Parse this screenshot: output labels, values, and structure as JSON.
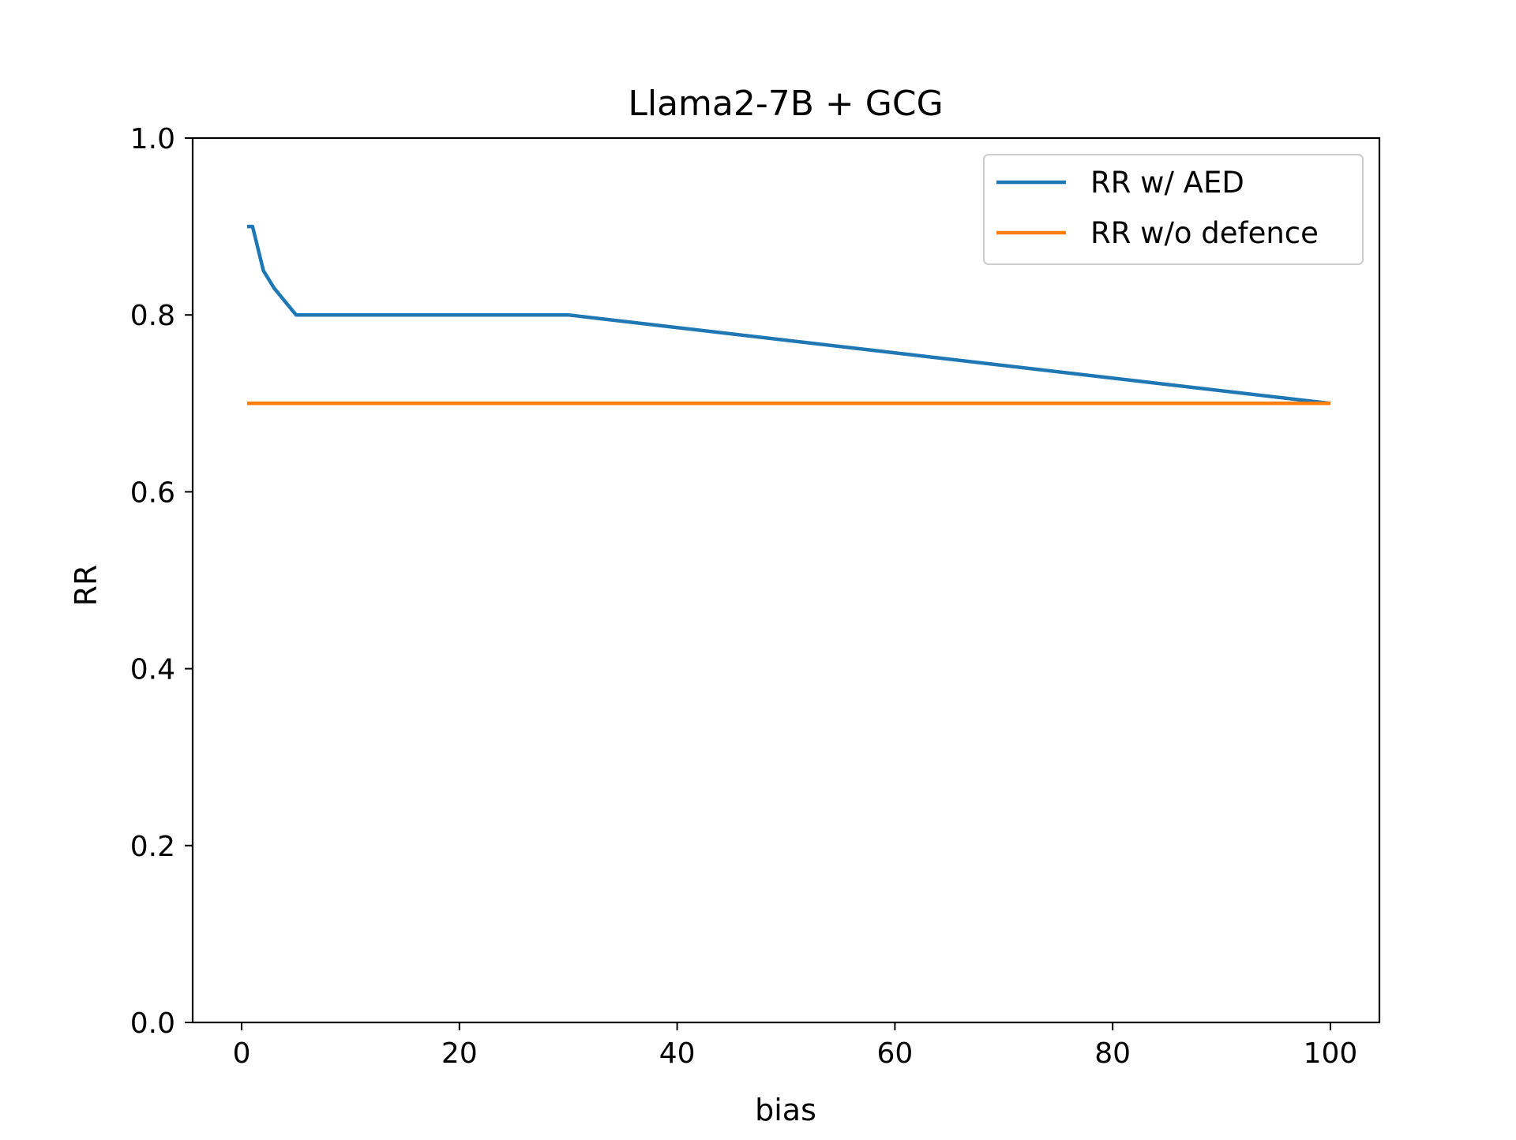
{
  "chart_data": {
    "type": "line",
    "title": "Llama2-7B + GCG",
    "xlabel": "bias",
    "ylabel": "RR",
    "xlim": [
      -4.5,
      104.5
    ],
    "ylim": [
      0.0,
      1.0
    ],
    "xticks": [
      0,
      20,
      40,
      60,
      80,
      100
    ],
    "xtick_labels": [
      "0",
      "20",
      "40",
      "60",
      "80",
      "100"
    ],
    "yticks": [
      0.0,
      0.2,
      0.4,
      0.6,
      0.8,
      1.0
    ],
    "ytick_labels": [
      "0.0",
      "0.2",
      "0.4",
      "0.6",
      "0.8",
      "1.0"
    ],
    "grid": false,
    "legend_position": "top-right",
    "series": [
      {
        "name": "RR w/ AED",
        "color": "#1f77b4",
        "x": [
          0.5,
          1,
          2,
          3,
          4,
          5,
          10,
          20,
          30,
          100
        ],
        "y": [
          0.9,
          0.9,
          0.85,
          0.83,
          0.815,
          0.8,
          0.8,
          0.8,
          0.8,
          0.7
        ]
      },
      {
        "name": "RR w/o defence",
        "color": "#ff7f0e",
        "x": [
          0.5,
          100
        ],
        "y": [
          0.7,
          0.7
        ]
      }
    ]
  }
}
